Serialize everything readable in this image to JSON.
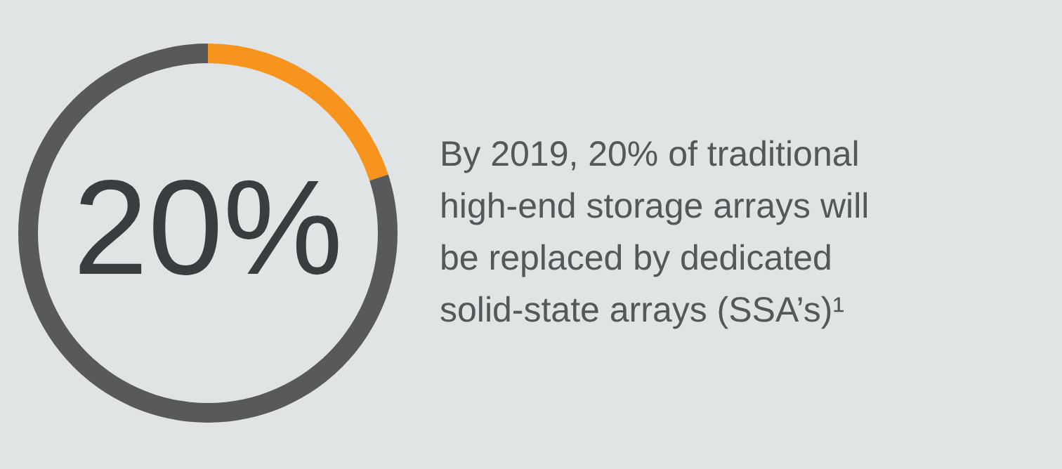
{
  "chart_data": {
    "type": "donut",
    "categories": [
      null,
      null
    ],
    "values": [
      20,
      80
    ],
    "colors": [
      "#f7941d",
      "#58595b"
    ],
    "value_labels": [
      "20%",
      null
    ],
    "annotations": [
      "By 2019, 20% of traditional\nhigh-end storage arrays will\nbe replaced by dedicated\nsolid-state arrays (SSA’s)¹"
    ]
  }
}
